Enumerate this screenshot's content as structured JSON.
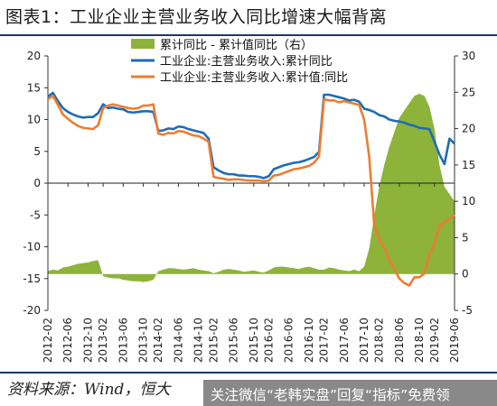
{
  "title": "图表1：工业企业主营业务收入同比增速大幅背离",
  "source_label": "资料来源：Wind，恒大",
  "watermark": "关注微信“老韩实盘”回复“指标”免费领",
  "colors": {
    "gap": "#8db33a",
    "yoy": "#1f6cb5",
    "cumval": "#ed7d31",
    "rule": "#1f3864"
  },
  "chart_data": {
    "type": "line",
    "title": "图表1：工业企业主营业务收入同比增速大幅背离",
    "legend_position": "top-right",
    "grid": false,
    "x_labels": [
      "2012-02",
      "2012-06",
      "2012-10",
      "2013-02",
      "2013-06",
      "2013-10",
      "2014-02",
      "2014-06",
      "2014-10",
      "2015-02",
      "2015-06",
      "2015-10",
      "2016-02",
      "2016-06",
      "2016-10",
      "2017-02",
      "2017-06",
      "2017-10",
      "2018-02",
      "2018-06",
      "2018-10",
      "2019-02",
      "2019-06"
    ],
    "x": [
      "2012-02",
      "2012-03",
      "2012-04",
      "2012-05",
      "2012-06",
      "2012-07",
      "2012-08",
      "2012-09",
      "2012-10",
      "2012-11",
      "2012-12",
      "2013-02",
      "2013-03",
      "2013-04",
      "2013-05",
      "2013-06",
      "2013-07",
      "2013-08",
      "2013-09",
      "2013-10",
      "2013-11",
      "2013-12",
      "2014-02",
      "2014-03",
      "2014-04",
      "2014-05",
      "2014-06",
      "2014-07",
      "2014-08",
      "2014-09",
      "2014-10",
      "2014-11",
      "2014-12",
      "2015-02",
      "2015-03",
      "2015-04",
      "2015-05",
      "2015-06",
      "2015-07",
      "2015-08",
      "2015-09",
      "2015-10",
      "2015-11",
      "2015-12",
      "2016-02",
      "2016-03",
      "2016-04",
      "2016-05",
      "2016-06",
      "2016-07",
      "2016-08",
      "2016-09",
      "2016-10",
      "2016-11",
      "2016-12",
      "2017-02",
      "2017-03",
      "2017-04",
      "2017-05",
      "2017-06",
      "2017-07",
      "2017-08",
      "2017-09",
      "2017-10",
      "2017-11",
      "2017-12",
      "2018-02",
      "2018-03",
      "2018-04",
      "2018-05",
      "2018-06",
      "2018-07",
      "2018-08",
      "2018-09",
      "2018-10",
      "2018-11",
      "2018-12",
      "2019-02",
      "2019-03",
      "2019-04",
      "2019-05",
      "2019-06"
    ],
    "left_axis": {
      "ylim": [
        -20,
        20
      ],
      "ticks": [
        -20,
        -15,
        -10,
        -5,
        0,
        5,
        10,
        15,
        20
      ]
    },
    "right_axis": {
      "ylim": [
        -5,
        30
      ],
      "ticks": [
        -5,
        0,
        5,
        10,
        15,
        20,
        25,
        30
      ]
    },
    "series": [
      {
        "name": "累计同比 - 累计值同比（右）",
        "type": "area",
        "axis": "right",
        "color": "#8db33a",
        "values": [
          0.4,
          0.6,
          0.5,
          0.9,
          1.0,
          1.2,
          1.4,
          1.5,
          1.6,
          1.8,
          1.9,
          -0.3,
          -0.5,
          -0.6,
          -0.6,
          -0.8,
          -0.9,
          -1.0,
          -1.0,
          -1.1,
          -1.0,
          -0.8,
          0.4,
          0.6,
          0.8,
          0.8,
          0.7,
          0.6,
          0.7,
          0.8,
          0.6,
          0.5,
          0.4,
          0.1,
          0.3,
          0.6,
          0.7,
          0.6,
          0.5,
          0.3,
          0.4,
          0.5,
          0.3,
          0.2,
          0.5,
          0.9,
          1.0,
          1.0,
          0.9,
          0.8,
          0.7,
          0.9,
          1.0,
          0.8,
          0.6,
          0.6,
          0.9,
          0.8,
          0.6,
          0.5,
          0.4,
          0.6,
          0.4,
          1.0,
          3.5,
          8.0,
          12.0,
          15.0,
          17.5,
          19.5,
          21.5,
          22.5,
          23.5,
          24.5,
          24.8,
          24.5,
          23.0,
          20.0,
          15.0,
          12.0,
          11.0,
          10.0
        ]
      },
      {
        "name": "工业企业:主营业务收入:累计同比",
        "type": "line",
        "axis": "left",
        "color": "#1f6cb5",
        "values": [
          13.6,
          14.2,
          12.9,
          11.8,
          11.2,
          10.8,
          10.5,
          10.3,
          10.4,
          10.4,
          11.0,
          12.4,
          11.8,
          11.9,
          11.7,
          11.6,
          11.2,
          11.1,
          11.2,
          11.3,
          11.3,
          11.2,
          8.2,
          8.3,
          8.6,
          8.5,
          8.9,
          8.8,
          8.5,
          8.3,
          8.1,
          7.9,
          7.0,
          2.5,
          2.0,
          1.6,
          1.4,
          1.4,
          1.2,
          1.2,
          1.1,
          1.1,
          1.0,
          0.8,
          1.1,
          2.2,
          2.5,
          2.8,
          3.0,
          3.2,
          3.3,
          3.5,
          3.8,
          4.1,
          4.9,
          13.9,
          13.9,
          13.7,
          13.5,
          13.3,
          13.0,
          13.1,
          12.8,
          11.7,
          11.5,
          11.2,
          10.7,
          10.5,
          10.0,
          9.8,
          9.7,
          9.5,
          9.2,
          9.0,
          8.7,
          8.6,
          8.5,
          6.5,
          4.5,
          3.0,
          7.0,
          6.2
        ]
      },
      {
        "name": "工业企业:主营业务收入:累计值:同比",
        "type": "line",
        "axis": "left",
        "color": "#ed7d31",
        "values": [
          13.2,
          13.7,
          12.3,
          10.8,
          10.1,
          9.5,
          9.0,
          8.7,
          8.6,
          8.5,
          9.1,
          11.8,
          12.2,
          12.4,
          12.2,
          12.0,
          11.8,
          11.7,
          11.8,
          12.2,
          12.2,
          12.4,
          7.8,
          7.6,
          7.9,
          7.8,
          8.2,
          8.1,
          7.8,
          7.5,
          7.4,
          7.0,
          6.5,
          1.0,
          0.8,
          0.7,
          0.5,
          0.6,
          0.6,
          0.5,
          0.4,
          0.4,
          0.4,
          0.3,
          0.4,
          1.2,
          1.3,
          1.6,
          1.9,
          2.2,
          2.3,
          2.5,
          2.7,
          3.2,
          4.2,
          13.2,
          13.0,
          13.0,
          12.7,
          12.9,
          12.7,
          12.5,
          12.3,
          10.0,
          4.2,
          -6.5,
          -8.8,
          -10.2,
          -12.0,
          -13.5,
          -15.0,
          -15.7,
          -16.1,
          -14.8,
          -14.8,
          -14.2,
          -11.3,
          -9.5,
          -6.7,
          -6.2,
          -5.7,
          -5.0
        ]
      }
    ]
  }
}
